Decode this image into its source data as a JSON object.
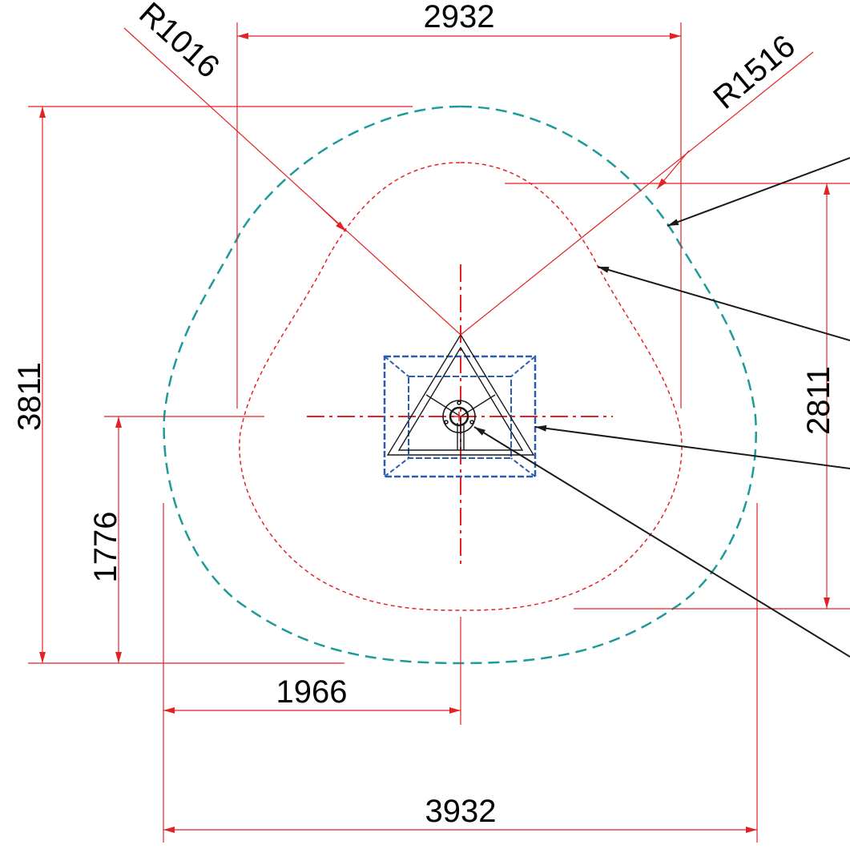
{
  "dimensions": {
    "top_width": "2932",
    "bottom_width": "3932",
    "bottom_half_width": "1966",
    "left_total_height": "3811",
    "left_partial_height": "1776",
    "right_height": "2811",
    "radius_inner": "R1016",
    "radius_outer": "R1516"
  },
  "colors": {
    "dimension": "#e32226",
    "outer_zone": "#1d9a9a",
    "inner_zone": "#e32226",
    "footprint": "#2a5db0",
    "frame": "#1a1a1a",
    "leader": "#1a1a1a"
  }
}
